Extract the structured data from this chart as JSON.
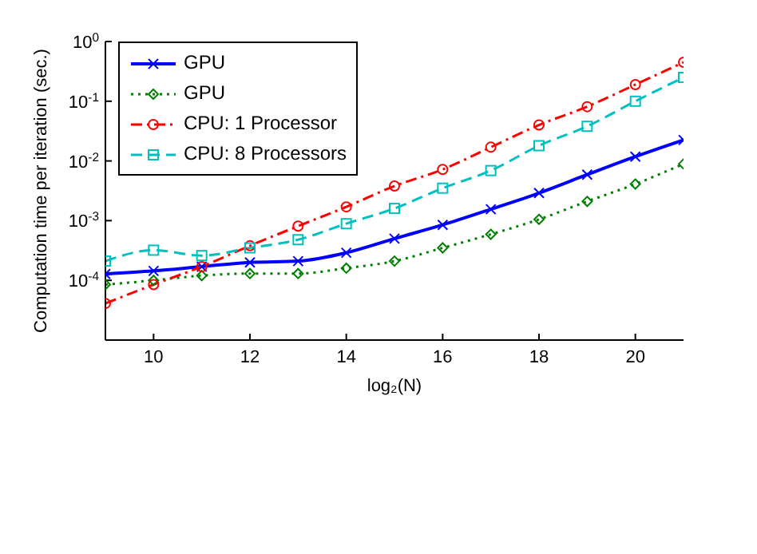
{
  "chart_data": {
    "type": "line",
    "xlabel": "log₂(N)",
    "ylabel": "Computation time per iteration (sec.)",
    "x": [
      9,
      10,
      11,
      12,
      13,
      14,
      15,
      16,
      17,
      18,
      19,
      20,
      21
    ],
    "series": [
      {
        "name": "GPU",
        "color": "#0000ff",
        "marker": "cross",
        "line_style": "solid",
        "values": [
          0.000128,
          0.000144,
          0.00017,
          0.0002,
          0.00021,
          0.00029,
          0.0005,
          0.00085,
          0.00155,
          0.0029,
          0.0059,
          0.0118,
          0.0224
        ]
      },
      {
        "name": "GPU",
        "color": "#008000",
        "marker": "diamond",
        "line_style": "dotted",
        "values": [
          8.5e-05,
          0.0001,
          0.00012,
          0.00013,
          0.00013,
          0.00016,
          0.00021,
          0.00035,
          0.00059,
          0.00105,
          0.0021,
          0.0041,
          0.0089
        ]
      },
      {
        "name": "CPU: 1 Processor",
        "color": "#ff0000",
        "marker": "circle",
        "line_style": "dashdot",
        "values": [
          4.1e-05,
          8.5e-05,
          0.00017,
          0.00038,
          0.00081,
          0.0017,
          0.0038,
          0.0072,
          0.017,
          0.04,
          0.081,
          0.19,
          0.45
        ]
      },
      {
        "name": "CPU: 8 Processors",
        "color": "#00bfbf",
        "marker": "square",
        "line_style": "dashed",
        "values": [
          0.00021,
          0.00032,
          0.00026,
          0.00035,
          0.00048,
          0.00089,
          0.0016,
          0.0035,
          0.0069,
          0.018,
          0.038,
          0.1,
          0.25
        ]
      }
    ],
    "xlim": [
      9,
      21
    ],
    "xticks": [
      10,
      12,
      14,
      16,
      18,
      20
    ],
    "ylim": [
      1e-05,
      1
    ],
    "yticks": [
      {
        "value": 1e-05,
        "label": null
      },
      {
        "value": 0.0001,
        "label": "10$^{-4}$"
      },
      {
        "value": 0.001,
        "label": "10$^{-3}$"
      },
      {
        "value": 0.01,
        "label": "10$^{-2}$"
      },
      {
        "value": 0.1,
        "label": "10$^{-1}$"
      },
      {
        "value": 1,
        "label": "10$^{0}$"
      }
    ],
    "log": "y",
    "legend": "top left"
  }
}
